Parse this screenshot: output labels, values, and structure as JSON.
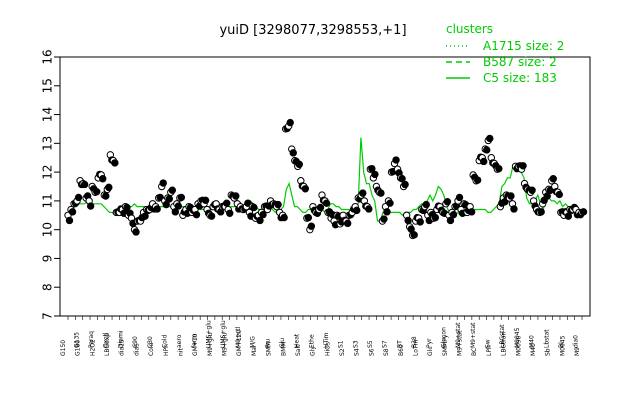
{
  "colors": {
    "cluster": "#00cc00",
    "points": "#000000",
    "axis": "#000000"
  },
  "chart_data": {
    "type": "line",
    "title": "yuiD [3298077,3298553,+1]",
    "xlabel": "",
    "ylabel": "",
    "ylim": [
      7,
      16
    ],
    "yticks": [
      7,
      8,
      9,
      10,
      11,
      12,
      13,
      14,
      15,
      16
    ],
    "grid": false,
    "legend_position": "top-right",
    "legend": {
      "title": "clusters",
      "entries": [
        {
          "label": "A1715 size: 2",
          "style": "dotted"
        },
        {
          "label": "B587 size: 2",
          "style": "dashed"
        },
        {
          "label": "C5 size: 183",
          "style": "solid"
        }
      ]
    },
    "x_tick_labels": [
      "G150",
      "G135",
      "G180",
      "Paraq",
      "H2O2",
      "Oxctl",
      "LBGexp",
      "Diami",
      "dia15",
      "C90",
      "dia5",
      "C30",
      "Cold",
      "Cold",
      "HPh",
      "aero",
      "nit",
      "ferm",
      "GM+10",
      "UMS+glu",
      "M9+glu",
      "UMS+glu",
      "M9+glu",
      "M9+ctl",
      "GM+120",
      "M/G",
      "Mal",
      "Fru",
      "SMM",
      "Glu",
      "BMM",
      "Heat",
      "Salt",
      "Ethe",
      "Gly",
      "HTim",
      "HiOs",
      "S1",
      "S2",
      "S3",
      "S4",
      "S5",
      "S6",
      "S7",
      "S8",
      "BT",
      "B60",
      "B38",
      "LoTm",
      "Pyr",
      "Glc",
      "Glucon",
      "SMMPy",
      "M9+stat",
      "M9+stat",
      "M9+stat",
      "BC",
      "Sw",
      "LPh",
      "LBGstat",
      "LBGtran",
      "M0045",
      "M0090",
      "M40",
      "M40",
      "Lbstat",
      "Sb",
      "Bl",
      "M0045",
      "dia0",
      "M9"
    ],
    "series": [
      {
        "name": "C5 size: 183",
        "style": "solid",
        "values": [
          10.5,
          10.7,
          10.8,
          10.8,
          10.9,
          10.9,
          10.9,
          11.0,
          10.8,
          10.9,
          10.9,
          10.9,
          10.9,
          10.8,
          10.7,
          10.6,
          10.6,
          10.5,
          10.5,
          10.5,
          10.6,
          10.7,
          10.8,
          10.8,
          10.9,
          10.8,
          10.8,
          10.8,
          10.8,
          10.8,
          10.8,
          10.8,
          10.8,
          10.8,
          10.8,
          10.8,
          10.8,
          10.8,
          10.8,
          10.8,
          10.9,
          10.8,
          10.8,
          10.8,
          10.8,
          10.8,
          10.7,
          10.8,
          10.7,
          10.7,
          10.8,
          10.8,
          10.7,
          10.7,
          10.8,
          10.7,
          10.8,
          10.8,
          10.7,
          10.8,
          10.8,
          10.8,
          10.8,
          10.8,
          10.8,
          10.9,
          11.0,
          10.9,
          10.8,
          10.7,
          10.7,
          10.7,
          10.7,
          10.8,
          10.7,
          10.6,
          10.7,
          10.7,
          10.8,
          11.4,
          11.6,
          11.2,
          10.8,
          10.8,
          10.7,
          10.6,
          10.6,
          10.7,
          10.7,
          10.7,
          10.7,
          10.7,
          10.7,
          10.6,
          10.7,
          10.9,
          10.9,
          10.8,
          10.8,
          10.7,
          10.7,
          10.7,
          10.7,
          10.8,
          10.8,
          10.9,
          13.2,
          12.0,
          11.6,
          11.6,
          11.2,
          11.0,
          10.3,
          10.3,
          10.6,
          10.6,
          10.6,
          10.6,
          10.6,
          10.6,
          10.6,
          10.5,
          10.6,
          10.6,
          10.6,
          10.7,
          10.7,
          10.8,
          10.9,
          10.9,
          11.0,
          11.2,
          11.0,
          11.2,
          11.5,
          11.4,
          11.2,
          10.8,
          10.6,
          10.4,
          10.5,
          10.6,
          10.5,
          10.5,
          10.5,
          10.6,
          10.6,
          10.7,
          10.7,
          10.7,
          10.7,
          10.7,
          10.6,
          10.6,
          10.7,
          10.8,
          10.9,
          11.5,
          11.6,
          11.8,
          11.8,
          12.2,
          12.2,
          12.3,
          12.0,
          11.8,
          11.1,
          10.9,
          10.9,
          11.0,
          11.2,
          10.9,
          10.7,
          11.1,
          11.1,
          11.0,
          11.0,
          10.9,
          11.0,
          10.8,
          10.9,
          10.8,
          10.8,
          10.7,
          10.6,
          10.7,
          10.6
        ],
        "points_open": [
          10.5,
          10.7,
          10.9,
          11.0,
          11.7,
          11.6,
          11.1,
          11.0,
          11.5,
          11.3,
          11.8,
          11.9,
          11.2,
          11.4,
          12.6,
          12.4,
          10.6,
          10.6,
          10.7,
          10.8,
          10.5,
          10.4,
          10.0,
          10.3,
          10.3,
          10.6,
          10.7,
          10.7,
          10.9,
          10.8,
          11.1,
          11.5,
          11.0,
          11.1,
          11.3,
          10.8,
          10.9,
          11.1,
          10.5,
          10.7,
          10.8,
          10.6,
          10.7,
          10.9,
          11.0,
          10.9,
          10.7,
          10.5,
          10.8,
          10.9,
          10.7,
          10.8,
          10.8,
          10.7,
          11.2,
          11.1,
          10.9,
          10.8,
          10.7,
          10.8,
          10.6,
          10.8,
          10.4,
          10.5,
          10.6,
          10.8,
          10.7,
          11.0,
          10.9,
          10.8,
          10.6,
          10.5,
          13.5,
          13.6,
          12.8,
          12.4,
          12.2,
          11.7,
          11.5,
          10.4,
          10.0,
          10.8,
          10.6,
          10.7,
          11.2,
          11.0,
          10.6,
          10.4,
          10.3,
          10.5,
          10.2,
          10.5,
          10.3,
          10.5,
          10.6,
          10.8,
          11.1,
          11.2,
          11.0,
          10.8,
          12.1,
          11.8,
          11.5,
          11.3,
          10.3,
          10.8,
          11.0,
          12.0,
          12.3,
          12.1,
          11.8,
          11.5,
          10.5,
          10.1,
          9.8,
          10.3,
          10.4,
          10.7,
          10.8,
          10.5,
          10.6,
          10.4,
          10.7,
          10.8,
          10.6,
          10.9,
          10.5,
          10.6,
          10.8,
          11.0,
          10.7,
          10.9,
          10.6,
          10.8,
          11.9,
          11.7,
          12.4,
          12.5,
          12.8,
          13.1,
          12.5,
          12.3,
          12.1,
          10.8,
          11.1,
          11.2,
          11.1,
          10.9,
          12.2,
          12.2,
          12.1,
          11.6,
          11.4,
          11.3,
          11.0,
          10.7,
          10.6,
          10.9,
          11.3,
          11.4,
          11.7,
          11.5,
          11.3,
          10.6,
          10.5,
          10.6,
          10.7,
          10.7,
          10.7,
          10.6,
          10.6
        ]
      }
    ]
  }
}
